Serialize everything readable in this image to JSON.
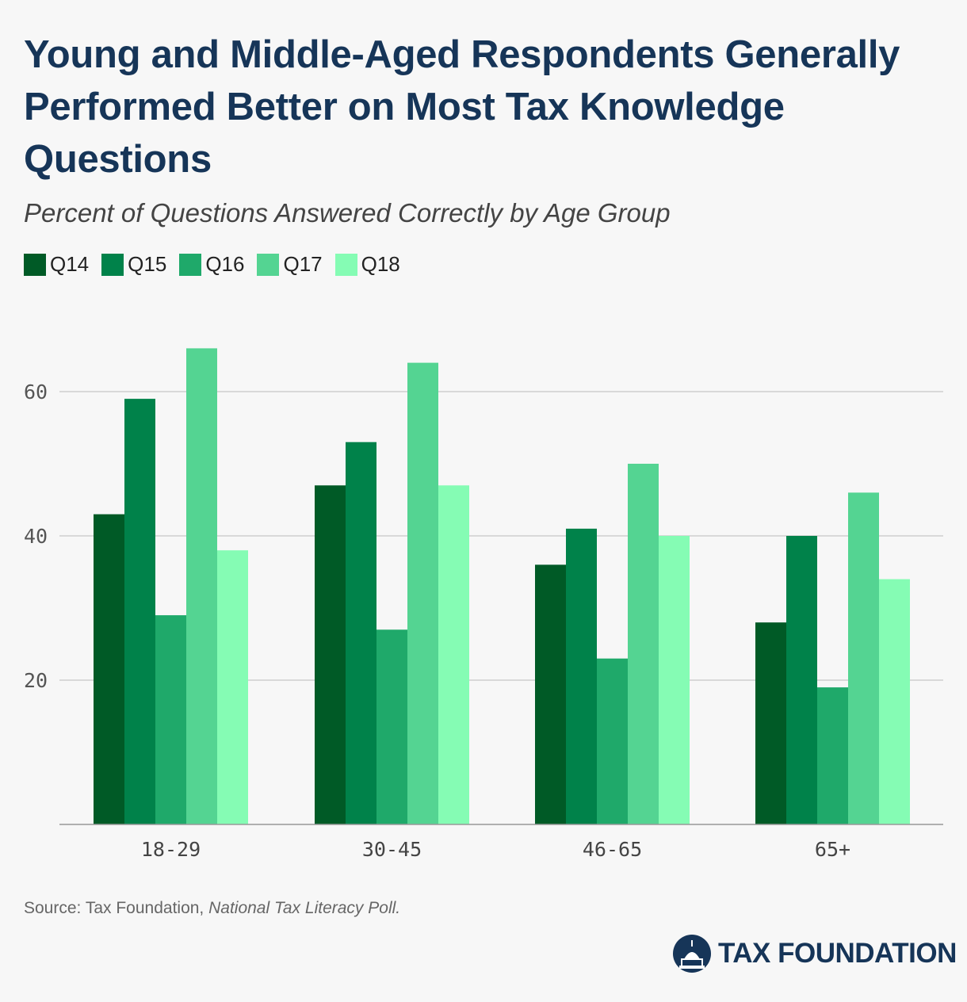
{
  "title": "Young and Middle-Aged Respondents Generally Performed Better on Most Tax Knowledge Questions",
  "subtitle": "Percent of Questions Answered Correctly by Age Group",
  "source_prefix": "Source: Tax Foundation, ",
  "source_italic": "National Tax Literacy Poll.",
  "logo_text": "TAX FOUNDATION",
  "chart_data": {
    "type": "bar",
    "categories": [
      "18-29",
      "30-45",
      "46-65",
      "65+"
    ],
    "series": [
      {
        "name": "Q14",
        "color": "#005a26",
        "values": [
          43,
          47,
          36,
          28
        ]
      },
      {
        "name": "Q15",
        "color": "#00824a",
        "values": [
          59,
          53,
          41,
          40
        ]
      },
      {
        "name": "Q16",
        "color": "#1fa96a",
        "values": [
          29,
          27,
          23,
          19
        ]
      },
      {
        "name": "Q17",
        "color": "#54d492",
        "values": [
          66,
          64,
          50,
          46
        ]
      },
      {
        "name": "Q18",
        "color": "#85fcb4",
        "values": [
          38,
          47,
          40,
          34
        ]
      }
    ],
    "yticks": [
      20,
      40,
      60
    ],
    "ylim": [
      0,
      70
    ],
    "grid": true,
    "legend": "top-left"
  }
}
